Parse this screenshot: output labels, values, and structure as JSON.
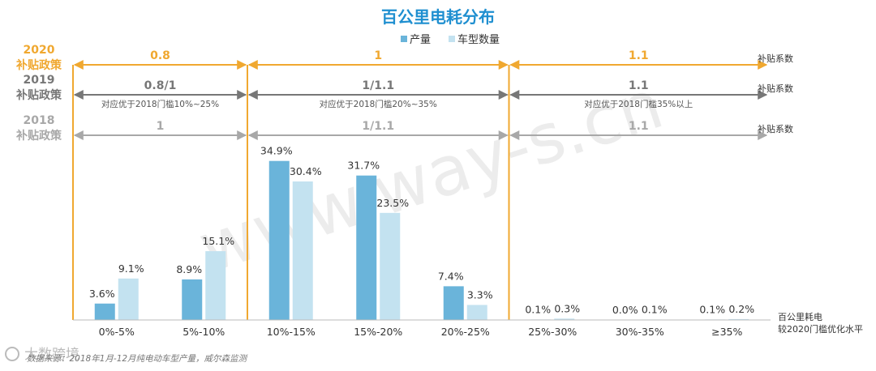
{
  "title": "百公里电耗分布",
  "legend": [
    {
      "name": "产量",
      "color": "#6AB4DA"
    },
    {
      "name": "车型数量",
      "color": "#C3E2F0"
    }
  ],
  "policies": [
    {
      "label": [
        "2020",
        "补贴政策"
      ],
      "color": "#F0A830",
      "coef_label": "补贴系数",
      "segments": [
        {
          "value": "0.8",
          "note": ""
        },
        {
          "value": "1",
          "note": ""
        },
        {
          "value": "1.1",
          "note": ""
        }
      ]
    },
    {
      "label": [
        "2019",
        "补贴政策"
      ],
      "color": "#777777",
      "coef_label": "补贴系数",
      "segments": [
        {
          "value": "0.8/1",
          "note": "对应优于2018门槛10%~25%"
        },
        {
          "value": "1/1.1",
          "note": "对应优于2018门槛20%~35%"
        },
        {
          "value": "1.1",
          "note": "对应优于2018门槛35%以上"
        }
      ]
    },
    {
      "label": [
        "2018",
        "补贴政策"
      ],
      "color": "#A8A8A8",
      "coef_label": "补贴系数",
      "segments": [
        {
          "value": "1",
          "note": ""
        },
        {
          "value": "1/1.1",
          "note": ""
        },
        {
          "value": "1.1",
          "note": ""
        }
      ]
    }
  ],
  "chart_data": {
    "type": "bar",
    "title": "百公里电耗分布",
    "categories": [
      "0%-5%",
      "5%-10%",
      "10%-15%",
      "15%-20%",
      "20%-25%",
      "25%-30%",
      "30%-35%",
      "≥35%"
    ],
    "series": [
      {
        "name": "产量",
        "values": [
          3.6,
          8.9,
          34.9,
          31.7,
          7.4,
          0.1,
          0.0,
          0.1
        ],
        "labels": [
          "3.6%",
          "8.9%",
          "34.9%",
          "31.7%",
          "7.4%",
          "0.1%",
          "0.0%",
          "0.1%"
        ]
      },
      {
        "name": "车型数量",
        "values": [
          9.1,
          15.1,
          30.4,
          23.5,
          3.3,
          0.3,
          0.1,
          0.2
        ],
        "labels": [
          "9.1%",
          "15.1%",
          "30.4%",
          "23.5%",
          "3.3%",
          "0.3%",
          "0.1%",
          "0.2%"
        ]
      }
    ],
    "xlabel": [
      "百公里耗电",
      "较2020门槛优化水平"
    ],
    "ylim": [
      0,
      40
    ],
    "grid": false,
    "legend_position": "top-center"
  },
  "source": "数据来源：2018年1月-12月纯电动车型产量，威尔森监测",
  "logo": "大数跨境",
  "watermark": "www.way-s.cn",
  "colors": {
    "title": "#1F8FD0",
    "divider": "#F0A830",
    "axis": "#BBBBBB"
  }
}
